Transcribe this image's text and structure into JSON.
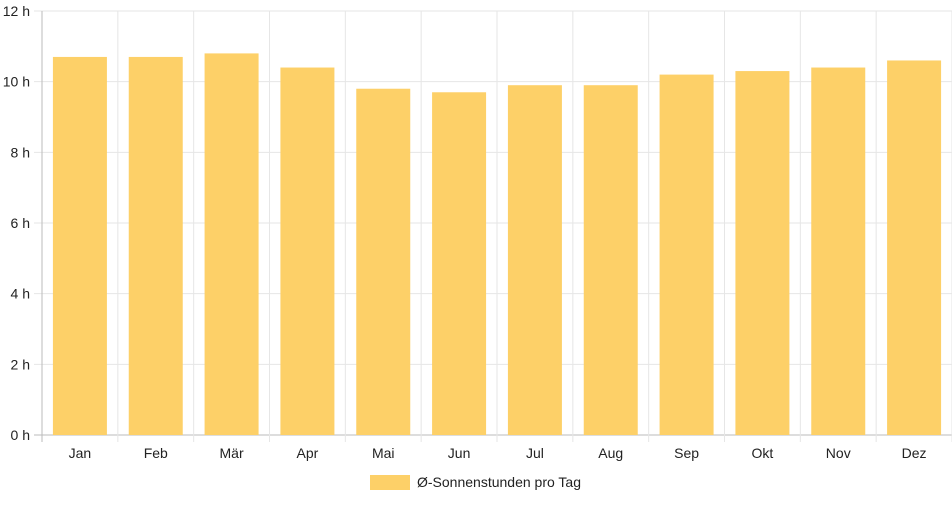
{
  "chart_data": {
    "type": "bar",
    "categories": [
      "Jan",
      "Feb",
      "Mär",
      "Apr",
      "Mai",
      "Jun",
      "Jul",
      "Aug",
      "Sep",
      "Okt",
      "Nov",
      "Dez"
    ],
    "series": [
      {
        "name": "Ø-Sonnenstunden pro Tag",
        "values": [
          10.7,
          10.7,
          10.8,
          10.4,
          9.8,
          9.7,
          9.9,
          9.9,
          10.2,
          10.3,
          10.4,
          10.6
        ],
        "color": "#fdd068"
      }
    ],
    "y_ticks": [
      0,
      2,
      4,
      6,
      8,
      10,
      12
    ],
    "y_unit": "h",
    "ylim": [
      0,
      12
    ],
    "grid": true,
    "legend_position": "bottom"
  }
}
